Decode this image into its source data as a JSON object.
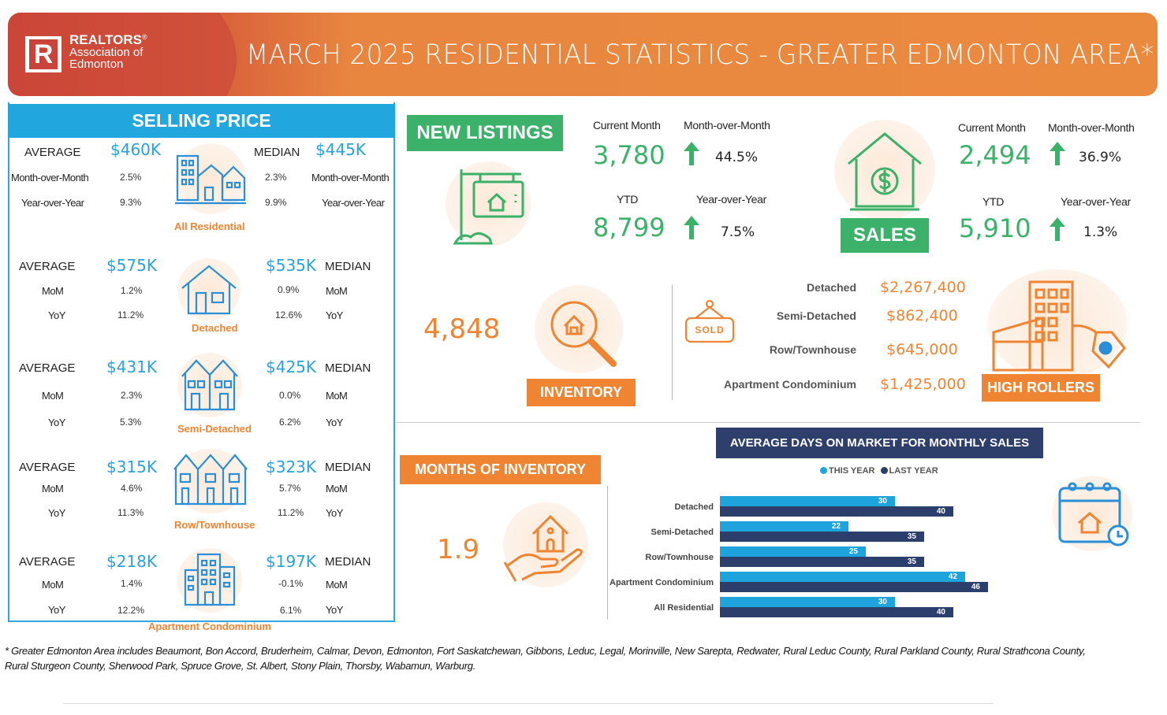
{
  "header": {
    "brand_name": "REALTORS",
    "brand_reg": "®",
    "brand_line2": "Association of",
    "brand_line3": "Edmonton",
    "logo_letter": "R",
    "title": "MARCH 2025 RESIDENTIAL STATISTICS - GREATER EDMONTON AREA*"
  },
  "selling_price": {
    "title": "SELLING PRICE",
    "all_residential": {
      "label": "All Residential",
      "average_label": "AVERAGE",
      "average": "$460K",
      "median_label": "MEDIAN",
      "median": "$445K",
      "mom_label": "Month-over-Month",
      "yoy_label": "Year-over-Year",
      "avg_mom": "2.5%",
      "avg_yoy": "9.3%",
      "med_mom": "2.3%",
      "med_yoy": "9.9%"
    },
    "categories": [
      {
        "label": "Detached",
        "average": "$575K",
        "median": "$535K",
        "avg_mom": "1.2%",
        "avg_yoy": "11.2%",
        "med_mom": "0.9%",
        "med_yoy": "12.6%"
      },
      {
        "label": "Semi-Detached",
        "average": "$431K",
        "median": "$425K",
        "avg_mom": "2.3%",
        "avg_yoy": "5.3%",
        "med_mom": "0.0%",
        "med_yoy": "6.2%"
      },
      {
        "label": "Row/Townhouse",
        "average": "$315K",
        "median": "$323K",
        "avg_mom": "4.6%",
        "avg_yoy": "11.3%",
        "med_mom": "5.7%",
        "med_yoy": "11.2%"
      },
      {
        "label": "Apartment Condominium",
        "average": "$218K",
        "median": "$197K",
        "avg_mom": "1.4%",
        "avg_yoy": "12.2%",
        "med_mom": "-0.1%",
        "med_yoy": "6.1%"
      }
    ],
    "average_label": "AVERAGE",
    "median_label": "MEDIAN",
    "mom_short": "MoM",
    "yoy_short": "YoY"
  },
  "new_listings": {
    "title": "NEW  LISTINGS",
    "current_month_label": "Current Month",
    "current_month": "3,780",
    "mom_label": "Month-over-Month",
    "mom": "44.5%",
    "ytd_label": "YTD",
    "ytd": "8,799",
    "yoy_label": "Year-over-Year",
    "yoy": "7.5%"
  },
  "sales": {
    "title": "SALES",
    "current_month_label": "Current Month",
    "current_month": "2,494",
    "mom_label": "Month-over-Month",
    "mom": "36.9%",
    "ytd_label": "YTD",
    "ytd": "5,910",
    "yoy_label": "Year-over-Year",
    "yoy": "1.3%"
  },
  "inventory": {
    "title": "INVENTORY",
    "value": "4,848"
  },
  "high_rollers": {
    "title": "HIGH ROLLERS",
    "sold_sign": "SOLD",
    "items": [
      {
        "label": "Detached",
        "value": "$2,267,400"
      },
      {
        "label": "Semi-Detached",
        "value": "$862,400"
      },
      {
        "label": "Row/Townhouse",
        "value": "$645,000"
      },
      {
        "label": "Apartment Condominium",
        "value": "$1,425,000"
      }
    ]
  },
  "months_of_inventory": {
    "title": "MONTHS OF INVENTORY",
    "value": "1.9"
  },
  "chart_data": {
    "type": "bar",
    "orientation": "horizontal",
    "title": "AVERAGE DAYS ON MARKET FOR MONTHLY SALES",
    "categories": [
      "Detached",
      "Semi-Detached",
      "Row/Townhouse",
      "Apartment Condominium",
      "All Residential"
    ],
    "series": [
      {
        "name": "THIS YEAR",
        "color": "#1fa3dc",
        "values": [
          30,
          22,
          25,
          42,
          30
        ]
      },
      {
        "name": "LAST YEAR",
        "color": "#2c3e6b",
        "values": [
          40,
          35,
          35,
          46,
          40
        ]
      }
    ],
    "xlim": [
      0,
      50
    ],
    "legend_position": "top",
    "grid": false
  },
  "colors": {
    "accent_orange": "#ef8532",
    "accent_blue": "#22a6de",
    "accent_green": "#3bb169",
    "navy": "#2f3f6b"
  },
  "footnote": {
    "line1": "* Greater Edmonton Area includes Beaumont, Bon Accord, Bruderheim, Calmar, Devon, Edmonton, Fort Saskatchewan, Gibbons, Leduc, Legal, Morinville, New Sarepta, Redwater, Rural Leduc County, Rural Parkland County, Rural Strathcona County,",
    "line2": "Rural Sturgeon County, Sherwood Park, Spruce Grove, St. Albert, Stony Plain, Thorsby, Wabamun, Warburg."
  }
}
